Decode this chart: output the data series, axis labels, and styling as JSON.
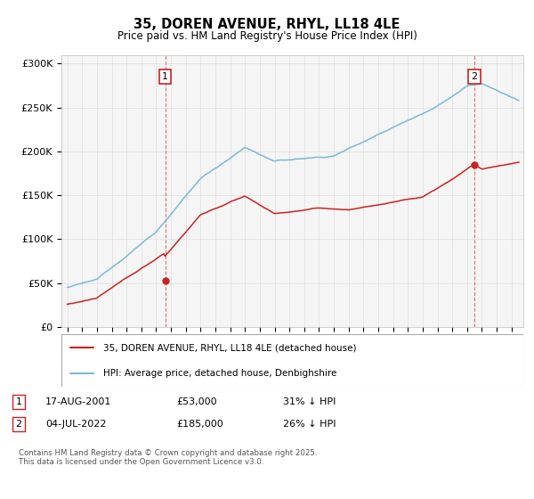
{
  "title_line1": "35, DOREN AVENUE, RHYL, LL18 4LE",
  "title_line2": "Price paid vs. HM Land Registry's House Price Index (HPI)",
  "ylim": [
    0,
    310000
  ],
  "yticks": [
    0,
    50000,
    100000,
    150000,
    200000,
    250000,
    300000
  ],
  "ytick_labels": [
    "£0",
    "£50K",
    "£100K",
    "£150K",
    "£200K",
    "£250K",
    "£300K"
  ],
  "hpi_color": "#7db8d8",
  "property_color": "#cc2222",
  "marker1_year": 2001.62,
  "marker1_price": 53000,
  "marker2_year": 2022.5,
  "marker2_price": 185000,
  "legend_property": "35, DOREN AVENUE, RHYL, LL18 4LE (detached house)",
  "legend_hpi": "HPI: Average price, detached house, Denbighshire",
  "marker1_date": "17-AUG-2001",
  "marker1_price_str": "£53,000",
  "marker1_note": "31% ↓ HPI",
  "marker2_date": "04-JUL-2022",
  "marker2_price_str": "£185,000",
  "marker2_note": "26% ↓ HPI",
  "footer": "Contains HM Land Registry data © Crown copyright and database right 2025.\nThis data is licensed under the Open Government Licence v3.0.",
  "bg_color": "#ffffff",
  "plot_bg_color": "#f5f5f5",
  "grid_color": "#dddddd",
  "xlim_left": 1994.6,
  "xlim_right": 2025.8
}
